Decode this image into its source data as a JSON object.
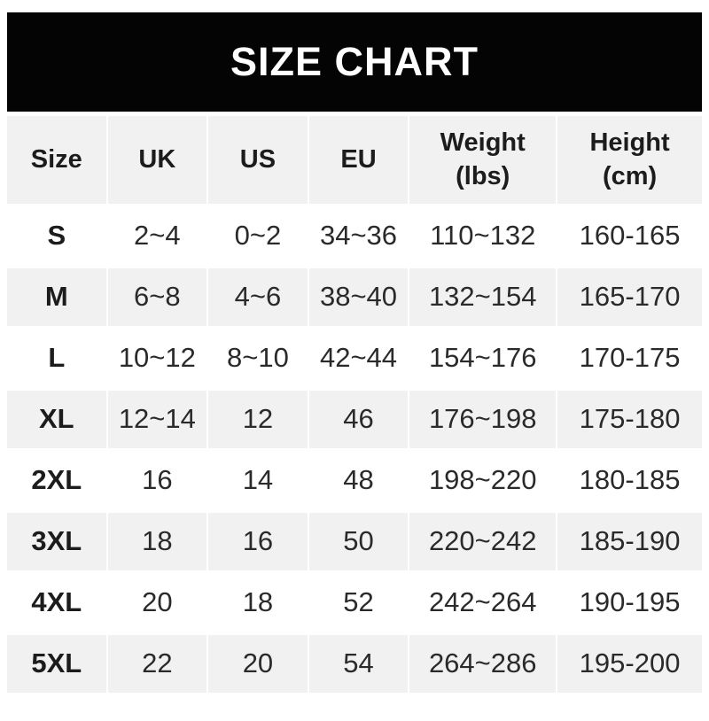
{
  "title": "SIZE CHART",
  "colors": {
    "banner_bg": "#040404",
    "banner_text": "#ffffff",
    "stripe_gray": "#f1f1f1",
    "page_bg": "#ffffff",
    "text": "#2a2a2a"
  },
  "table": {
    "columns": [
      {
        "label": "Size"
      },
      {
        "label": "UK"
      },
      {
        "label": "US"
      },
      {
        "label": "EU"
      },
      {
        "label": "Weight",
        "label2": "(lbs)"
      },
      {
        "label": "Height",
        "label2": "(cm)"
      }
    ],
    "rows": [
      {
        "size": "S",
        "cells": [
          "2~4",
          "0~2",
          "34~36",
          "110~132",
          "160-165"
        ]
      },
      {
        "size": "M",
        "cells": [
          "6~8",
          "4~6",
          "38~40",
          "132~154",
          "165-170"
        ]
      },
      {
        "size": "L",
        "cells": [
          "10~12",
          "8~10",
          "42~44",
          "154~176",
          "170-175"
        ]
      },
      {
        "size": "XL",
        "cells": [
          "12~14",
          "12",
          "46",
          "176~198",
          "175-180"
        ]
      },
      {
        "size": "2XL",
        "cells": [
          "16",
          "14",
          "48",
          "198~220",
          "180-185"
        ]
      },
      {
        "size": "3XL",
        "cells": [
          "18",
          "16",
          "50",
          "220~242",
          "185-190"
        ]
      },
      {
        "size": "4XL",
        "cells": [
          "20",
          "18",
          "52",
          "242~264",
          "190-195"
        ]
      },
      {
        "size": "5XL",
        "cells": [
          "22",
          "20",
          "54",
          "264~286",
          "195-200"
        ]
      }
    ]
  },
  "chart_data": {
    "type": "table",
    "title": "SIZE CHART",
    "columns": [
      "Size",
      "UK",
      "US",
      "EU",
      "Weight (lbs)",
      "Height (cm)"
    ],
    "rows": [
      [
        "S",
        "2~4",
        "0~2",
        "34~36",
        "110~132",
        "160-165"
      ],
      [
        "M",
        "6~8",
        "4~6",
        "38~40",
        "132~154",
        "165-170"
      ],
      [
        "L",
        "10~12",
        "8~10",
        "42~44",
        "154~176",
        "170-175"
      ],
      [
        "XL",
        "12~14",
        "12",
        "46",
        "176~198",
        "175-180"
      ],
      [
        "2XL",
        "16",
        "14",
        "48",
        "198~220",
        "180-185"
      ],
      [
        "3XL",
        "18",
        "16",
        "50",
        "220~242",
        "185-190"
      ],
      [
        "4XL",
        "20",
        "18",
        "52",
        "242~264",
        "190-195"
      ],
      [
        "5XL",
        "22",
        "20",
        "54",
        "264~286",
        "195-200"
      ]
    ]
  }
}
